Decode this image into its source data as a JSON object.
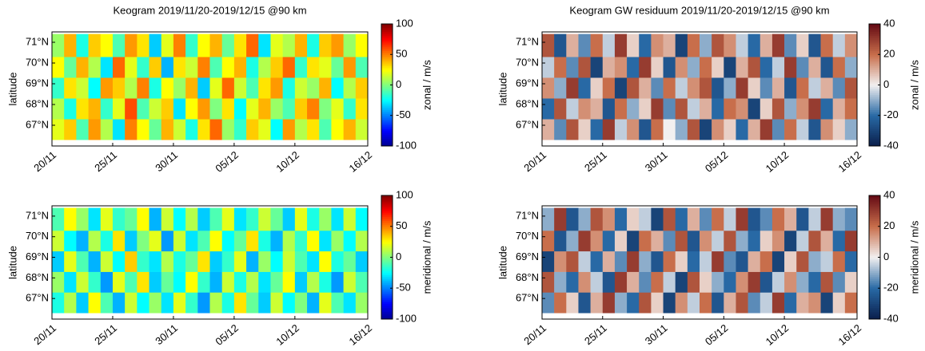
{
  "chart_data": [
    {
      "type": "heatmap",
      "title": "Keogram 2019/11/20-2019/12/15 @90 km",
      "ylabel": "latitude",
      "colorbar_label": "zonal / m/s",
      "colormap": "jet",
      "xbins": [
        "2019-11-20",
        "2019-11-21",
        "2019-11-22",
        "2019-11-23",
        "2019-11-24",
        "2019-11-25",
        "2019-11-26",
        "2019-11-27",
        "2019-11-28",
        "2019-11-29",
        "2019-11-30",
        "2019-12-01",
        "2019-12-02",
        "2019-12-03",
        "2019-12-04",
        "2019-12-05",
        "2019-12-06",
        "2019-12-07",
        "2019-12-08",
        "2019-12-09",
        "2019-12-10",
        "2019-12-11",
        "2019-12-12",
        "2019-12-13",
        "2019-12-14",
        "2019-12-15",
        "2019-12-16"
      ],
      "ybins": [
        66.3,
        67.3,
        68.3,
        69.3,
        70.3,
        71.4
      ],
      "z": [
        [
          20,
          35,
          -10,
          45,
          10,
          -30,
          50,
          25,
          -5,
          40,
          15,
          -20,
          30,
          55,
          5,
          -15,
          35,
          20,
          -25,
          45,
          10,
          30,
          -10,
          25,
          40,
          15
        ],
        [
          10,
          -20,
          30,
          40,
          -15,
          20,
          60,
          -10,
          15,
          35,
          -30,
          25,
          45,
          0,
          30,
          -25,
          20,
          40,
          5,
          -10,
          35,
          50,
          0,
          20,
          -15,
          30
        ],
        [
          -15,
          30,
          15,
          -25,
          45,
          35,
          10,
          50,
          -20,
          25,
          5,
          40,
          -35,
          20,
          55,
          15,
          -10,
          30,
          45,
          -20,
          15,
          5,
          40,
          -25,
          10,
          35
        ],
        [
          25,
          -5,
          40,
          10,
          -30,
          55,
          20,
          -15,
          35,
          -40,
          30,
          15,
          50,
          -10,
          25,
          40,
          -20,
          10,
          35,
          55,
          -15,
          30,
          20,
          -5,
          45,
          -10
        ],
        [
          5,
          40,
          -20,
          35,
          25,
          -10,
          45,
          30,
          -35,
          20,
          50,
          -15,
          25,
          40,
          -5,
          30,
          55,
          -30,
          20,
          10,
          40,
          -20,
          35,
          45,
          5,
          25
        ]
      ],
      "xlim": [
        "2019-11-20",
        "2019-12-16"
      ],
      "xticks": [
        {
          "value": "2019-11-20",
          "label": "20/11"
        },
        {
          "value": "2019-11-25",
          "label": "25/11"
        },
        {
          "value": "2019-11-30",
          "label": "30/11"
        },
        {
          "value": "2019-12-05",
          "label": "05/12"
        },
        {
          "value": "2019-12-10",
          "label": "10/12"
        },
        {
          "value": "2019-12-16",
          "label": "16/12"
        }
      ],
      "ylim": [
        66,
        71.5
      ],
      "yticks": [
        {
          "value": 67,
          "label": "67°N"
        },
        {
          "value": 68,
          "label": "68°N"
        },
        {
          "value": 69,
          "label": "69°N"
        },
        {
          "value": 70,
          "label": "70°N"
        },
        {
          "value": 71,
          "label": "71°N"
        }
      ],
      "clim": [
        -100,
        100
      ],
      "cticks": [
        -100,
        -50,
        0,
        50,
        100
      ]
    },
    {
      "type": "heatmap",
      "title": "Keogram GW residuum 2019/11/20-2019/12/15 @90 km",
      "ylabel": "latitude",
      "colorbar_label": "zonal / m/s",
      "colormap": "balance",
      "xbins": [
        "2019-11-20",
        "2019-11-21",
        "2019-11-22",
        "2019-11-23",
        "2019-11-24",
        "2019-11-25",
        "2019-11-26",
        "2019-11-27",
        "2019-11-28",
        "2019-11-29",
        "2019-11-30",
        "2019-12-01",
        "2019-12-02",
        "2019-12-03",
        "2019-12-04",
        "2019-12-05",
        "2019-12-06",
        "2019-12-07",
        "2019-12-08",
        "2019-12-09",
        "2019-12-10",
        "2019-12-11",
        "2019-12-12",
        "2019-12-13",
        "2019-12-14",
        "2019-12-15",
        "2019-12-16"
      ],
      "ybins": [
        66.3,
        67.3,
        68.3,
        69.3,
        70.3,
        71.4
      ],
      "z": [
        [
          10,
          -15,
          25,
          5,
          -20,
          30,
          -5,
          15,
          -25,
          20,
          0,
          -10,
          25,
          -30,
          15,
          5,
          -20,
          10,
          30,
          -15,
          20,
          -5,
          -25,
          15,
          5,
          -10
        ],
        [
          -20,
          25,
          -5,
          15,
          10,
          -25,
          20,
          -10,
          5,
          30,
          -15,
          25,
          -5,
          10,
          -20,
          20,
          15,
          -30,
          5,
          25,
          -10,
          15,
          30,
          -20,
          10,
          20
        ],
        [
          15,
          -10,
          30,
          -20,
          5,
          20,
          -30,
          25,
          10,
          -15,
          20,
          -5,
          15,
          25,
          -25,
          -10,
          30,
          5,
          -15,
          10,
          -25,
          20,
          -5,
          10,
          -15,
          25
        ],
        [
          -5,
          20,
          -15,
          25,
          -30,
          10,
          15,
          -20,
          30,
          5,
          -25,
          15,
          -10,
          20,
          5,
          -30,
          10,
          25,
          -20,
          -5,
          30,
          -15,
          10,
          -25,
          20,
          -10
        ],
        [
          25,
          -25,
          10,
          -15,
          20,
          -5,
          30,
          5,
          -20,
          15,
          10,
          -30,
          20,
          -10,
          25,
          15,
          -5,
          -20,
          10,
          30,
          -15,
          5,
          -25,
          20,
          -5,
          15
        ]
      ],
      "xlim": [
        "2019-11-20",
        "2019-12-16"
      ],
      "xticks": [
        {
          "value": "2019-11-20",
          "label": "20/11"
        },
        {
          "value": "2019-11-25",
          "label": "25/11"
        },
        {
          "value": "2019-11-30",
          "label": "30/11"
        },
        {
          "value": "2019-12-05",
          "label": "05/12"
        },
        {
          "value": "2019-12-10",
          "label": "10/12"
        },
        {
          "value": "2019-12-16",
          "label": "16/12"
        }
      ],
      "ylim": [
        66,
        71.5
      ],
      "yticks": [
        {
          "value": 67,
          "label": "67°N"
        },
        {
          "value": 68,
          "label": "68°N"
        },
        {
          "value": 69,
          "label": "69°N"
        },
        {
          "value": 70,
          "label": "70°N"
        },
        {
          "value": 71,
          "label": "71°N"
        }
      ],
      "clim": [
        -40,
        40
      ],
      "cticks": [
        -40,
        -20,
        0,
        20,
        40
      ]
    },
    {
      "type": "heatmap",
      "ylabel": "latitude",
      "colorbar_label": "meridional / m/s",
      "colormap": "jet",
      "xbins": [
        "2019-11-20",
        "2019-11-21",
        "2019-11-22",
        "2019-11-23",
        "2019-11-24",
        "2019-11-25",
        "2019-11-26",
        "2019-11-27",
        "2019-11-28",
        "2019-11-29",
        "2019-11-30",
        "2019-12-01",
        "2019-12-02",
        "2019-12-03",
        "2019-12-04",
        "2019-12-05",
        "2019-12-06",
        "2019-12-07",
        "2019-12-08",
        "2019-12-09",
        "2019-12-10",
        "2019-12-11",
        "2019-12-12",
        "2019-12-13",
        "2019-12-14",
        "2019-12-15",
        "2019-12-16"
      ],
      "ybins": [
        66.3,
        67.3,
        68.3,
        69.3,
        70.3,
        71.4
      ],
      "z": [
        [
          -20,
          10,
          -35,
          25,
          -10,
          -40,
          15,
          -25,
          5,
          -30,
          20,
          -15,
          -45,
          10,
          -20,
          30,
          -5,
          -35,
          15,
          -25,
          0,
          -40,
          20,
          -10,
          -30,
          5
        ],
        [
          5,
          -30,
          15,
          -15,
          -45,
          20,
          -10,
          30,
          -35,
          -5,
          -25,
          25,
          -15,
          -40,
          15,
          -20,
          10,
          -30,
          -5,
          25,
          -35,
          10,
          -20,
          -45,
          15,
          -10
        ],
        [
          -35,
          20,
          -10,
          -40,
          15,
          -25,
          35,
          -15,
          -30,
          10,
          -20,
          -5,
          30,
          -35,
          -15,
          20,
          -40,
          5,
          -25,
          15,
          -10,
          -30,
          25,
          -20,
          -5,
          -35
        ],
        [
          15,
          -25,
          -40,
          10,
          -20,
          30,
          -35,
          0,
          20,
          -45,
          15,
          -30,
          -10,
          25,
          -25,
          -5,
          30,
          -20,
          -40,
          10,
          -15,
          25,
          -30,
          5,
          -25,
          10
        ],
        [
          -10,
          25,
          5,
          -30,
          20,
          -15,
          -5,
          25,
          -40,
          15,
          -25,
          10,
          -35,
          -10,
          20,
          -30,
          -15,
          15,
          -5,
          -35,
          20,
          -20,
          5,
          -30,
          15,
          -25
        ]
      ],
      "xlim": [
        "2019-11-20",
        "2019-12-16"
      ],
      "xticks": [
        {
          "value": "2019-11-20",
          "label": "20/11"
        },
        {
          "value": "2019-11-25",
          "label": "25/11"
        },
        {
          "value": "2019-11-30",
          "label": "30/11"
        },
        {
          "value": "2019-12-05",
          "label": "05/12"
        },
        {
          "value": "2019-12-10",
          "label": "10/12"
        },
        {
          "value": "2019-12-16",
          "label": "16/12"
        }
      ],
      "ylim": [
        66,
        71.5
      ],
      "yticks": [
        {
          "value": 67,
          "label": "67°N"
        },
        {
          "value": 68,
          "label": "68°N"
        },
        {
          "value": 69,
          "label": "69°N"
        },
        {
          "value": 70,
          "label": "70°N"
        },
        {
          "value": 71,
          "label": "71°N"
        }
      ],
      "clim": [
        -100,
        100
      ],
      "cticks": [
        -100,
        -50,
        0,
        50,
        100
      ]
    },
    {
      "type": "heatmap",
      "ylabel": "latitude",
      "colorbar_label": "meridional / m/s",
      "colormap": "balance",
      "xbins": [
        "2019-11-20",
        "2019-11-21",
        "2019-11-22",
        "2019-11-23",
        "2019-11-24",
        "2019-11-25",
        "2019-11-26",
        "2019-11-27",
        "2019-11-28",
        "2019-11-29",
        "2019-11-30",
        "2019-12-01",
        "2019-12-02",
        "2019-12-03",
        "2019-12-04",
        "2019-12-05",
        "2019-12-06",
        "2019-12-07",
        "2019-12-08",
        "2019-12-09",
        "2019-12-10",
        "2019-12-11",
        "2019-12-12",
        "2019-12-13",
        "2019-12-14",
        "2019-12-15",
        "2019-12-16"
      ],
      "ybins": [
        66.3,
        67.3,
        68.3,
        69.3,
        70.3,
        71.4
      ],
      "z": [
        [
          -15,
          20,
          5,
          -25,
          10,
          30,
          -10,
          -20,
          25,
          5,
          -30,
          15,
          -5,
          20,
          -25,
          10,
          25,
          -15,
          -5,
          30,
          -20,
          10,
          15,
          -30,
          5,
          20
        ],
        [
          25,
          -10,
          -20,
          15,
          -5,
          -25,
          30,
          10,
          -15,
          20,
          -5,
          -30,
          25,
          5,
          -10,
          -20,
          15,
          30,
          -25,
          -5,
          15,
          -10,
          -20,
          25,
          -15,
          5
        ],
        [
          -30,
          15,
          25,
          -5,
          -20,
          10,
          -15,
          30,
          -10,
          -25,
          20,
          5,
          -20,
          -5,
          30,
          -15,
          -25,
          10,
          20,
          -30,
          5,
          25,
          -10,
          -5,
          20,
          -20
        ],
        [
          20,
          -25,
          -10,
          30,
          15,
          -20,
          5,
          -30,
          20,
          10,
          -15,
          25,
          -25,
          15,
          -5,
          25,
          -10,
          -20,
          5,
          15,
          -30,
          -5,
          25,
          10,
          -20,
          30
        ],
        [
          -10,
          30,
          -25,
          -10,
          25,
          15,
          -20,
          5,
          -5,
          -30,
          25,
          -20,
          10,
          -15,
          20,
          -5,
          30,
          -25,
          -15,
          20,
          10,
          -25,
          -5,
          30,
          -10,
          -15
        ]
      ],
      "xlim": [
        "2019-11-20",
        "2019-12-16"
      ],
      "xticks": [
        {
          "value": "2019-11-20",
          "label": "20/11"
        },
        {
          "value": "2019-11-25",
          "label": "25/11"
        },
        {
          "value": "2019-11-30",
          "label": "30/11"
        },
        {
          "value": "2019-12-05",
          "label": "05/12"
        },
        {
          "value": "2019-12-10",
          "label": "10/12"
        },
        {
          "value": "2019-12-16",
          "label": "16/12"
        }
      ],
      "ylim": [
        66,
        71.5
      ],
      "yticks": [
        {
          "value": 67,
          "label": "67°N"
        },
        {
          "value": 68,
          "label": "68°N"
        },
        {
          "value": 69,
          "label": "69°N"
        },
        {
          "value": 70,
          "label": "70°N"
        },
        {
          "value": 71,
          "label": "71°N"
        }
      ],
      "clim": [
        -40,
        40
      ],
      "cticks": [
        -40,
        -20,
        0,
        20,
        40
      ]
    }
  ]
}
